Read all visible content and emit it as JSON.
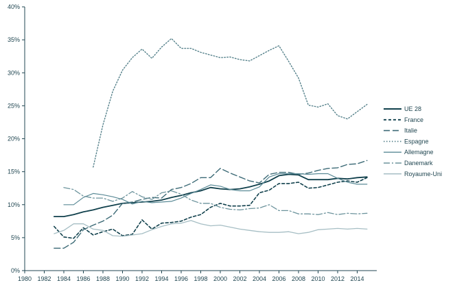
{
  "chart_data": {
    "type": "line",
    "ylim": [
      0,
      0.4
    ],
    "yticks": [
      {
        "value": 0.0,
        "label": "0%"
      },
      {
        "value": 0.05,
        "label": "5%"
      },
      {
        "value": 0.1,
        "label": "10%"
      },
      {
        "value": 0.15,
        "label": "15%"
      },
      {
        "value": 0.2,
        "label": "20%"
      },
      {
        "value": 0.25,
        "label": "25%"
      },
      {
        "value": 0.3,
        "label": "30%"
      },
      {
        "value": 0.35,
        "label": "35%"
      },
      {
        "value": 0.4,
        "label": "40%"
      }
    ],
    "xlim": [
      1980,
      2016
    ],
    "xticks": [
      {
        "value": 1980,
        "label": "1980"
      },
      {
        "value": 1982,
        "label": "1982"
      },
      {
        "value": 1984,
        "label": "1984"
      },
      {
        "value": 1986,
        "label": "1986"
      },
      {
        "value": 1988,
        "label": "1988"
      },
      {
        "value": 1990,
        "label": "1990"
      },
      {
        "value": 1992,
        "label": "1992"
      },
      {
        "value": 1994,
        "label": "1994"
      },
      {
        "value": 1996,
        "label": "1996"
      },
      {
        "value": 1998,
        "label": "1998"
      },
      {
        "value": 2000,
        "label": "2000"
      },
      {
        "value": 2002,
        "label": "2002"
      },
      {
        "value": 2004,
        "label": "2004"
      },
      {
        "value": 2006,
        "label": "2006"
      },
      {
        "value": 2008,
        "label": "2008"
      },
      {
        "value": 2010,
        "label": "2010"
      },
      {
        "value": 2012,
        "label": "2012"
      },
      {
        "value": 2014,
        "label": "2014"
      }
    ],
    "grid": false,
    "legend_position": "right",
    "series": [
      {
        "name": "UE 28",
        "color": "#0f3f4b",
        "dash": "solid",
        "width": 1.8,
        "x": [
          1983,
          1984,
          1985,
          1986,
          1987,
          1988,
          1989,
          1990,
          1991,
          1992,
          1993,
          1994,
          1995,
          1996,
          1997,
          1998,
          1999,
          2000,
          2001,
          2002,
          2003,
          2004,
          2005,
          2006,
          2007,
          2008,
          2009,
          2010,
          2011,
          2012,
          2013,
          2014,
          2015
        ],
        "y": [
          0.082,
          0.082,
          0.085,
          0.089,
          0.092,
          0.096,
          0.099,
          0.102,
          0.103,
          0.104,
          0.105,
          0.107,
          0.111,
          0.114,
          0.118,
          0.121,
          0.126,
          0.124,
          0.123,
          0.124,
          0.127,
          0.131,
          0.136,
          0.144,
          0.146,
          0.145,
          0.138,
          0.138,
          0.138,
          0.14,
          0.139,
          0.141,
          0.142
        ]
      },
      {
        "name": "France",
        "color": "#0f3f4b",
        "dash": "4,3",
        "width": 1.6,
        "x": [
          1983,
          1984,
          1985,
          1986,
          1987,
          1988,
          1989,
          1990,
          1991,
          1992,
          1993,
          1994,
          1995,
          1996,
          1997,
          1998,
          1999,
          2000,
          2001,
          2002,
          2003,
          2004,
          2005,
          2006,
          2007,
          2008,
          2009,
          2010,
          2011,
          2012,
          2013,
          2014,
          2015
        ],
        "y": [
          0.067,
          0.051,
          0.049,
          0.065,
          0.054,
          0.059,
          0.063,
          0.053,
          0.055,
          0.077,
          0.063,
          0.072,
          0.073,
          0.075,
          0.081,
          0.085,
          0.096,
          0.102,
          0.098,
          0.098,
          0.099,
          0.118,
          0.122,
          0.132,
          0.132,
          0.134,
          0.125,
          0.126,
          0.13,
          0.134,
          0.136,
          0.134,
          0.141
        ]
      },
      {
        "name": "Italie",
        "color": "#3c6a76",
        "dash": "9,4",
        "width": 1.4,
        "x": [
          1983,
          1984,
          1985,
          1986,
          1987,
          1988,
          1989,
          1990,
          1991,
          1992,
          1993,
          1994,
          1995,
          1996,
          1997,
          1998,
          1999,
          2000,
          2001,
          2002,
          2003,
          2004,
          2005,
          2006,
          2007,
          2008,
          2009,
          2010,
          2011,
          2012,
          2013,
          2014,
          2015
        ],
        "y": [
          0.034,
          0.034,
          0.043,
          0.062,
          0.069,
          0.075,
          0.084,
          0.102,
          0.104,
          0.108,
          0.111,
          0.11,
          0.123,
          0.126,
          0.132,
          0.141,
          0.141,
          0.155,
          0.148,
          0.142,
          0.136,
          0.133,
          0.146,
          0.149,
          0.149,
          0.146,
          0.148,
          0.152,
          0.155,
          0.156,
          0.161,
          0.162,
          0.167
        ]
      },
      {
        "name": "Espagne",
        "color": "#54808a",
        "dash": "1.5,2.5",
        "width": 1.4,
        "x": [
          1987,
          1988,
          1989,
          1990,
          1991,
          1992,
          1993,
          1994,
          1995,
          1996,
          1997,
          1998,
          1999,
          2000,
          2001,
          2002,
          2003,
          2004,
          2005,
          2006,
          2007,
          2008,
          2009,
          2010,
          2011,
          2012,
          2013,
          2014,
          2015
        ],
        "y": [
          0.157,
          0.221,
          0.272,
          0.304,
          0.323,
          0.336,
          0.322,
          0.339,
          0.352,
          0.337,
          0.337,
          0.331,
          0.327,
          0.323,
          0.324,
          0.32,
          0.318,
          0.326,
          0.334,
          0.341,
          0.317,
          0.292,
          0.251,
          0.248,
          0.253,
          0.235,
          0.23,
          0.241,
          0.252
        ]
      },
      {
        "name": "Allemagne",
        "color": "#5a8a96",
        "dash": "solid",
        "width": 1.2,
        "x": [
          1984,
          1985,
          1986,
          1987,
          1988,
          1989,
          1990,
          1991,
          1992,
          1993,
          1994,
          1995,
          1996,
          1997,
          1998,
          1999,
          2000,
          2001,
          2002,
          2003,
          2004,
          2005,
          2006,
          2007,
          2008,
          2009,
          2010,
          2011,
          2012,
          2013,
          2014,
          2015
        ],
        "y": [
          0.1,
          0.1,
          0.111,
          0.117,
          0.115,
          0.112,
          0.108,
          0.101,
          0.105,
          0.103,
          0.104,
          0.105,
          0.11,
          0.117,
          0.123,
          0.13,
          0.128,
          0.123,
          0.121,
          0.121,
          0.127,
          0.142,
          0.147,
          0.147,
          0.147,
          0.146,
          0.147,
          0.147,
          0.14,
          0.134,
          0.131,
          0.131
        ]
      },
      {
        "name": "Danemark",
        "color": "#6c939c",
        "dash": "9,3,2,3",
        "width": 1.3,
        "x": [
          1984,
          1985,
          1986,
          1987,
          1988,
          1989,
          1990,
          1991,
          1992,
          1993,
          1994,
          1995,
          1996,
          1997,
          1998,
          1999,
          2000,
          2001,
          2002,
          2003,
          2004,
          2005,
          2006,
          2007,
          2008,
          2009,
          2010,
          2011,
          2012,
          2013,
          2014,
          2015
        ],
        "y": [
          0.126,
          0.123,
          0.113,
          0.11,
          0.11,
          0.105,
          0.11,
          0.12,
          0.112,
          0.108,
          0.118,
          0.121,
          0.116,
          0.107,
          0.102,
          0.102,
          0.096,
          0.093,
          0.092,
          0.094,
          0.095,
          0.1,
          0.091,
          0.091,
          0.086,
          0.086,
          0.085,
          0.088,
          0.085,
          0.087,
          0.086,
          0.087
        ]
      },
      {
        "name": "Royaume-Uni",
        "color": "#a6bec4",
        "dash": "solid",
        "width": 1.3,
        "x": [
          1983,
          1984,
          1985,
          1986,
          1987,
          1988,
          1989,
          1990,
          1991,
          1992,
          1993,
          1994,
          1995,
          1996,
          1997,
          1998,
          1999,
          2000,
          2001,
          2002,
          2003,
          2004,
          2005,
          2006,
          2007,
          2008,
          2009,
          2010,
          2011,
          2012,
          2013,
          2014,
          2015
        ],
        "y": [
          0.056,
          0.061,
          0.071,
          0.071,
          0.063,
          0.061,
          0.053,
          0.052,
          0.054,
          0.056,
          0.062,
          0.067,
          0.071,
          0.072,
          0.076,
          0.071,
          0.068,
          0.069,
          0.066,
          0.063,
          0.061,
          0.059,
          0.058,
          0.058,
          0.059,
          0.056,
          0.058,
          0.062,
          0.063,
          0.064,
          0.063,
          0.064,
          0.063
        ]
      }
    ]
  }
}
